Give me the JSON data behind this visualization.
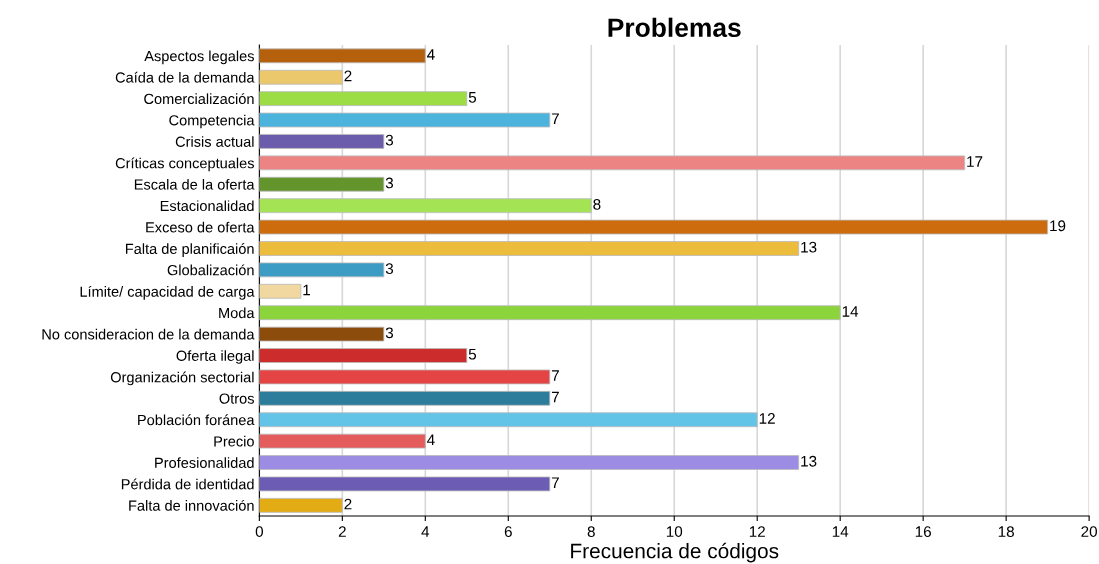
{
  "chart_data": {
    "type": "bar",
    "orientation": "horizontal",
    "title": "Problemas",
    "xlabel": "Frecuencia de códigos",
    "categories": [
      "Aspectos legales",
      "Caída de la demanda",
      "Comercialización",
      "Competencia",
      "Crisis actual",
      "Críticas conceptuales",
      "Escala de la oferta",
      "Estacionalidad",
      "Exceso de oferta",
      "Falta de planificaión",
      "Globalización",
      "Límite/ capacidad de carga",
      "Moda",
      "No consideracion de la demanda",
      "Oferta ilegal",
      "Organización sectorial",
      "Otros",
      "Población foránea",
      "Precio",
      "Profesionalidad",
      "Pérdida de identidad",
      "Falta de innovación"
    ],
    "values": [
      4,
      2,
      5,
      7,
      3,
      17,
      3,
      8,
      19,
      13,
      3,
      1,
      14,
      3,
      5,
      7,
      7,
      12,
      4,
      13,
      7,
      2
    ],
    "colors": [
      "#b4600c",
      "#ecc86c",
      "#9cdc44",
      "#4cb4dc",
      "#6c5cac",
      "#ec8484",
      "#64942c",
      "#a4e454",
      "#cc6c0c",
      "#ecbc3c",
      "#3c9cc4",
      "#f0d8a0",
      "#8cd43c",
      "#8c4c0c",
      "#cc2c2c",
      "#e44444",
      "#2c7c9c",
      "#64c4e8",
      "#e45c5c",
      "#9c8ce4",
      "#6c5cb4",
      "#e4ac14"
    ],
    "xlim": [
      0,
      20
    ],
    "xticks": [
      0,
      2,
      4,
      6,
      8,
      10,
      12,
      14,
      16,
      18,
      20
    ],
    "grid": "x",
    "data_labels": true
  }
}
